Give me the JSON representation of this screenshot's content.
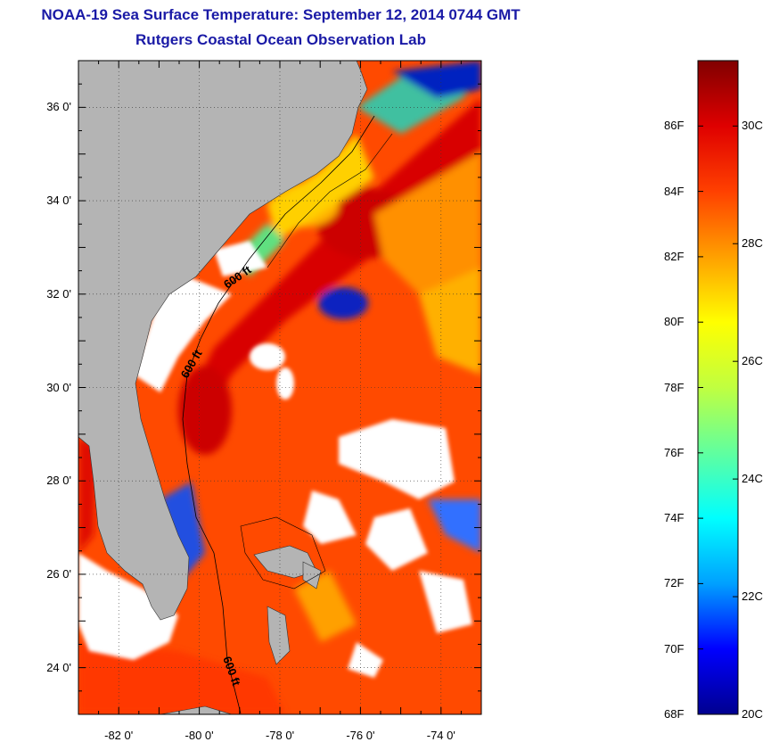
{
  "header": {
    "title": "NOAA-19 Sea Surface Temperature:  September 12, 2014 0744 GMT",
    "subtitle": "Rutgers Coastal Ocean Observation Lab"
  },
  "map": {
    "lon_range": [
      -83.0,
      -73.0
    ],
    "lat_range": [
      23.0,
      37.0
    ],
    "lat_ticks": [
      {
        "value": 36,
        "label": "36 0'"
      },
      {
        "value": 34,
        "label": "34 0'"
      },
      {
        "value": 32,
        "label": "32 0'"
      },
      {
        "value": 30,
        "label": "30 0'"
      },
      {
        "value": 28,
        "label": "28 0'"
      },
      {
        "value": 26,
        "label": "26 0'"
      },
      {
        "value": 24,
        "label": "24 0'"
      }
    ],
    "lon_ticks": [
      {
        "value": -82,
        "label": "-82 0'"
      },
      {
        "value": -80,
        "label": "-80 0'"
      },
      {
        "value": -78,
        "label": "-78 0'"
      },
      {
        "value": -76,
        "label": "-76 0'"
      },
      {
        "value": -74,
        "label": "-74 0'"
      }
    ],
    "contour_labels": [
      "600 ft",
      "600 ft",
      "600 ft"
    ],
    "land_color": "#b4b4b4",
    "cloud_color": "#ffffff"
  },
  "colorbar": {
    "temp_min_F": 68,
    "temp_max_F": 88,
    "f_ticks": [
      {
        "value": 68,
        "label": "68F"
      },
      {
        "value": 70,
        "label": "70F"
      },
      {
        "value": 72,
        "label": "72F"
      },
      {
        "value": 74,
        "label": "74F"
      },
      {
        "value": 76,
        "label": "76F"
      },
      {
        "value": 78,
        "label": "78F"
      },
      {
        "value": 80,
        "label": "80F"
      },
      {
        "value": 82,
        "label": "82F"
      },
      {
        "value": 84,
        "label": "84F"
      },
      {
        "value": 86,
        "label": "86F"
      }
    ],
    "c_ticks": [
      {
        "value": 20,
        "label": "20C"
      },
      {
        "value": 22,
        "label": "22C"
      },
      {
        "value": 24,
        "label": "24C"
      },
      {
        "value": 26,
        "label": "26C"
      },
      {
        "value": 28,
        "label": "28C"
      },
      {
        "value": 30,
        "label": "30C"
      }
    ],
    "colormap": [
      "#00008f",
      "#0000ff",
      "#00a0ff",
      "#00ffff",
      "#60ff9f",
      "#c0ff40",
      "#ffff00",
      "#ffa000",
      "#ff4000",
      "#df0000",
      "#800000"
    ]
  }
}
